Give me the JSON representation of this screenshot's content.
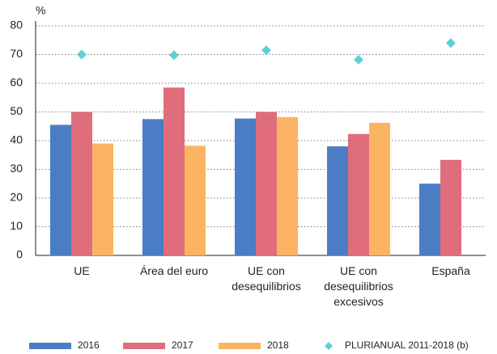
{
  "chart_data": {
    "type": "bar",
    "y_label": "%",
    "categories": [
      [
        "UE"
      ],
      [
        "Área del euro"
      ],
      [
        "UE con",
        "desequilibrios"
      ],
      [
        "UE con",
        "desequilibrios",
        "excesivos"
      ],
      [
        "España"
      ]
    ],
    "series": [
      {
        "name": "2016",
        "color": "#4a7dc4",
        "values": [
          45.5,
          47.5,
          47.7,
          38,
          25
        ]
      },
      {
        "name": "2017",
        "color": "#e06d7c",
        "values": [
          50,
          58.5,
          50,
          42.3,
          33.3
        ]
      },
      {
        "name": "2018",
        "color": "#fbb462",
        "values": [
          39,
          38.2,
          48.2,
          46.2,
          null
        ]
      },
      {
        "name": "PLURIANUAL 2011-2018 (b)",
        "color": "#5fcfd6",
        "type": "scatter",
        "values": [
          70,
          69.8,
          71.5,
          68.2,
          74
        ]
      }
    ],
    "ylim": [
      0,
      80
    ],
    "yticks": [
      0,
      10,
      20,
      30,
      40,
      50,
      60,
      70,
      80
    ],
    "grid": true
  }
}
